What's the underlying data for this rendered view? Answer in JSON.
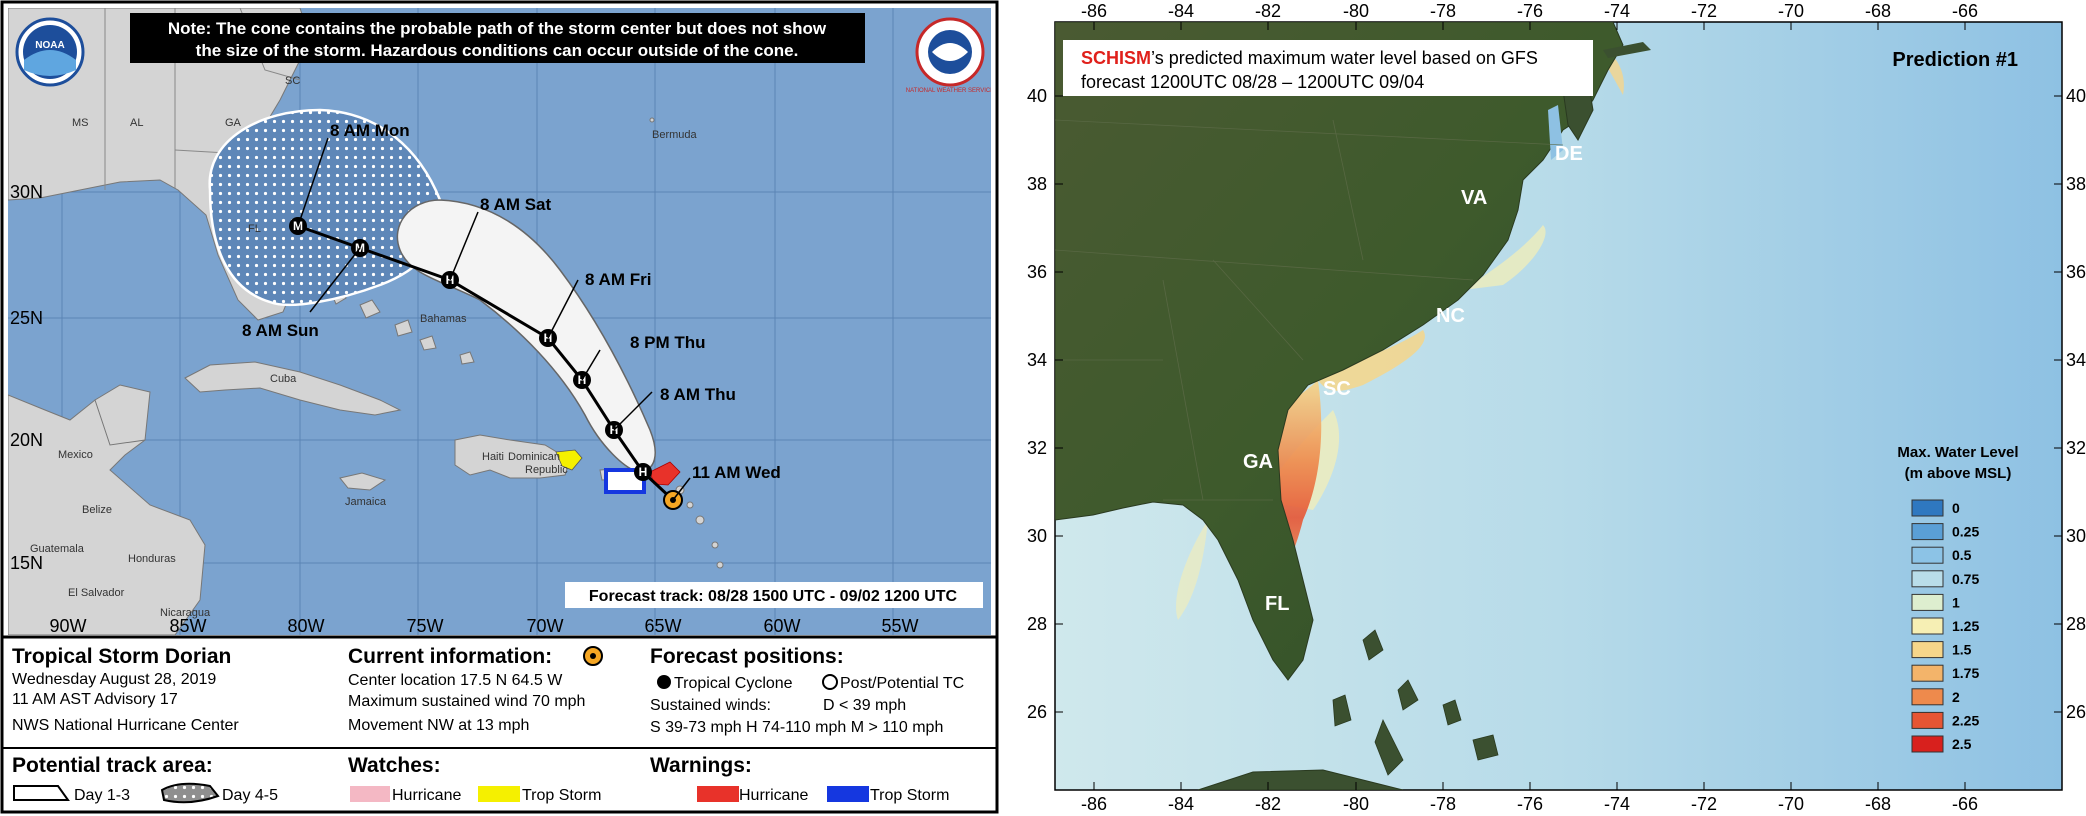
{
  "left_map": {
    "note": [
      "Note: The cone contains the probable path of the storm center but does not show",
      "the size of the storm. Hazardous conditions can occur outside of the cone."
    ],
    "logo_noaa": "NOAA",
    "logo_nws": "NATIONAL WEATHER SERVICE",
    "lat_labels": [
      "30N",
      "25N",
      "20N",
      "15N"
    ],
    "lon_labels": [
      "90W",
      "85W",
      "80W",
      "75W",
      "70W",
      "65W",
      "60W",
      "55W"
    ],
    "region_labels": [
      "SC",
      "MS",
      "AL",
      "GA",
      "FL",
      "Bermuda",
      "Bahamas",
      "Cuba",
      "Mexico",
      "Belize",
      "Jamaica",
      "Guatemala",
      "Honduras",
      "El Salvador",
      "Nicaragua",
      "Haiti",
      "Dominican",
      "Republic"
    ],
    "track_labels": [
      "8 AM Mon",
      "8 AM Sat",
      "8 AM Fri",
      "8 PM Thu",
      "8 AM Thu",
      "11 AM Wed",
      "8 AM Sun"
    ],
    "track_markers": [
      "M",
      "M",
      "H",
      "H",
      "H",
      "H",
      "H"
    ],
    "forecast_track": "Forecast track: 08/28 1500 UTC - 09/02 1200 UTC",
    "storm": {
      "name": "Tropical Storm Dorian",
      "date": "Wednesday August 28, 2019",
      "advisory": "11 AM AST Advisory 17",
      "center": "NWS National Hurricane Center"
    },
    "current": {
      "title": "Current information:",
      "location": "Center location 17.5 N 64.5 W",
      "wind": "Maximum sustained wind 70 mph",
      "movement": "Movement NW at 13 mph"
    },
    "forecast": {
      "title": "Forecast positions:",
      "tc": "Tropical Cyclone",
      "post": "Post/Potential TC",
      "winds": "Sustained winds:",
      "d": "D < 39 mph",
      "shm": "S 39-73 mph  H 74-110 mph  M > 110 mph"
    },
    "track_area": {
      "title": "Potential track area:",
      "day13": "Day 1-3",
      "day45": "Day 4-5"
    },
    "watches": {
      "title": "Watches:",
      "hurricane": "Hurricane",
      "trop": "Trop Storm"
    },
    "warnings": {
      "title": "Warnings:",
      "hurricane": "Hurricane",
      "trop": "Trop Storm"
    },
    "colors": {
      "ocean": "#7ba3cf",
      "land": "#d4d4d4",
      "hurr_watch": "#f4b8c4",
      "trop_watch": "#f5f000",
      "hurr_warn": "#e8322a",
      "trop_warn": "#1537e0"
    }
  },
  "right_map": {
    "title_red": "SCHISM",
    "title_rest": "’s predicted maximum water level based on GFS",
    "title_line2": "forecast 1200UTC 08/28 – 1200UTC 09/04",
    "prediction": "Prediction #1",
    "top_lon": [
      "-86",
      "-84",
      "-82",
      "-80",
      "-78",
      "-76",
      "-74",
      "-72",
      "-70",
      "-68",
      "-66"
    ],
    "bottom_lon": [
      "-86",
      "-84",
      "-82",
      "-80",
      "-78",
      "-76",
      "-74",
      "-72",
      "-70",
      "-68",
      "-66"
    ],
    "lat_labels": [
      "40",
      "38",
      "36",
      "34",
      "32",
      "30",
      "28",
      "26"
    ],
    "states": [
      "DE",
      "VA",
      "NC",
      "SC",
      "GA",
      "FL"
    ],
    "legend_title": [
      "Max. Water Level",
      "(m above MSL)"
    ],
    "legend": [
      {
        "label": "0",
        "color": "#2f78c0"
      },
      {
        "label": "0.25",
        "color": "#5a9fd6"
      },
      {
        "label": "0.5",
        "color": "#8cc3e6"
      },
      {
        "label": "0.75",
        "color": "#b9dde9"
      },
      {
        "label": "1",
        "color": "#ddeecf"
      },
      {
        "label": "1.25",
        "color": "#f6efb4"
      },
      {
        "label": "1.5",
        "color": "#f6d68a"
      },
      {
        "label": "1.75",
        "color": "#f3b46a"
      },
      {
        "label": "2",
        "color": "#ee8a4c"
      },
      {
        "label": "2.25",
        "color": "#e65534"
      },
      {
        "label": "2.5",
        "color": "#d8201d"
      }
    ]
  }
}
